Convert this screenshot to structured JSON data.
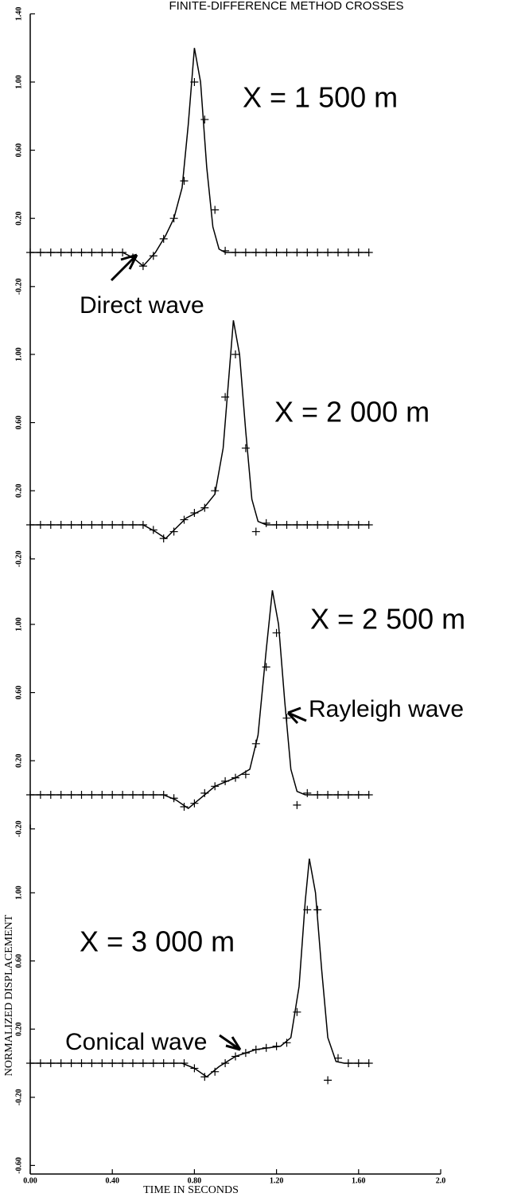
{
  "chart_data": [
    {
      "type": "line",
      "title": "FINITE-DIFFERENCE METHOD CROSSES",
      "label": "X = 1 500 m",
      "annotations": [
        "Direct wave"
      ],
      "xlim": [
        0,
        2
      ],
      "ylim": [
        -0.2,
        1.4
      ],
      "yticks": [
        {
          "value": -0.2,
          "label": "-0.20"
        },
        {
          "value": 0.2,
          "label": "0.20"
        },
        {
          "value": 0.6,
          "label": "0.60"
        },
        {
          "value": 1.0,
          "label": "1.00"
        },
        {
          "value": 1.4,
          "label": "1.40"
        }
      ],
      "series": [
        {
          "color": "#000000",
          "x": [
            0,
            0.45,
            0.5,
            0.55,
            0.61,
            0.66,
            0.7,
            0.74,
            0.77,
            0.8,
            0.83,
            0.86,
            0.89,
            0.92,
            0.95,
            1.65
          ],
          "values": [
            0,
            0,
            -0.03,
            -0.08,
            0,
            0.1,
            0.2,
            0.38,
            0.75,
            1.2,
            1.0,
            0.5,
            0.15,
            0.02,
            0,
            0
          ]
        },
        {
          "color": "#000000",
          "marker": "+",
          "x": [
            0,
            0.05,
            0.1,
            0.15,
            0.2,
            0.25,
            0.3,
            0.35,
            0.4,
            0.45,
            0.5,
            0.55,
            0.6,
            0.65,
            0.7,
            0.75,
            0.8,
            0.85,
            0.9,
            0.95,
            1.0,
            1.05,
            1.1,
            1.15,
            1.2,
            1.25,
            1.3,
            1.35,
            1.4,
            1.45,
            1.5,
            1.55,
            1.6,
            1.65
          ],
          "values": [
            0,
            0,
            0,
            0,
            0,
            0,
            0,
            0,
            0,
            0,
            -0.03,
            -0.08,
            -0.02,
            0.08,
            0.2,
            0.42,
            1.0,
            0.78,
            0.25,
            0.01,
            0,
            0,
            0,
            0,
            0,
            0,
            0,
            0,
            0,
            0,
            0,
            0,
            0,
            0
          ]
        }
      ]
    },
    {
      "type": "line",
      "label": "X = 2 000 m",
      "xlim": [
        0,
        2
      ],
      "ylim": [
        -0.2,
        1.4
      ],
      "yticks": [
        {
          "value": -0.2,
          "label": "-0.20"
        },
        {
          "value": 0.2,
          "label": "0.20"
        },
        {
          "value": 0.6,
          "label": "0.60"
        },
        {
          "value": 1.0,
          "label": "1.00"
        }
      ],
      "series": [
        {
          "color": "#000000",
          "x": [
            0,
            0.55,
            0.61,
            0.66,
            0.71,
            0.76,
            0.84,
            0.9,
            0.94,
            0.97,
            0.99,
            1.02,
            1.05,
            1.08,
            1.11,
            1.15,
            1.65
          ],
          "values": [
            0,
            0,
            -0.04,
            -0.08,
            -0.02,
            0.04,
            0.09,
            0.18,
            0.45,
            0.9,
            1.2,
            1.0,
            0.55,
            0.15,
            0.02,
            0,
            0
          ]
        },
        {
          "color": "#000000",
          "marker": "+",
          "x": [
            0,
            0.05,
            0.1,
            0.15,
            0.2,
            0.25,
            0.3,
            0.35,
            0.4,
            0.45,
            0.5,
            0.55,
            0.6,
            0.65,
            0.7,
            0.75,
            0.8,
            0.85,
            0.9,
            0.95,
            1.0,
            1.05,
            1.1,
            1.15,
            1.2,
            1.25,
            1.3,
            1.35,
            1.4,
            1.45,
            1.5,
            1.55,
            1.6,
            1.65
          ],
          "values": [
            0,
            0,
            0,
            0,
            0,
            0,
            0,
            0,
            0,
            0,
            0,
            0,
            -0.03,
            -0.08,
            -0.04,
            0.03,
            0.07,
            0.1,
            0.2,
            0.75,
            1.0,
            0.45,
            -0.04,
            0.01,
            0,
            0,
            0,
            0,
            0,
            0,
            0,
            0,
            0,
            0
          ]
        }
      ]
    },
    {
      "type": "line",
      "label": "X = 2 500 m",
      "annotations": [
        "Rayleigh wave"
      ],
      "xlim": [
        0,
        2
      ],
      "ylim": [
        -0.2,
        1.4
      ],
      "yticks": [
        {
          "value": -0.2,
          "label": "-0.20"
        },
        {
          "value": 0.2,
          "label": "0.20"
        },
        {
          "value": 0.6,
          "label": "0.60"
        },
        {
          "value": 1.0,
          "label": "1.00"
        }
      ],
      "series": [
        {
          "color": "#000000",
          "x": [
            0,
            0.65,
            0.71,
            0.77,
            0.83,
            0.9,
            1.0,
            1.07,
            1.11,
            1.15,
            1.18,
            1.21,
            1.24,
            1.27,
            1.3,
            1.34,
            1.65
          ],
          "values": [
            0,
            0,
            -0.03,
            -0.08,
            -0.02,
            0.05,
            0.1,
            0.15,
            0.35,
            0.85,
            1.2,
            1.0,
            0.55,
            0.15,
            0.02,
            0,
            0
          ]
        },
        {
          "color": "#000000",
          "marker": "+",
          "x": [
            0,
            0.05,
            0.1,
            0.15,
            0.2,
            0.25,
            0.3,
            0.35,
            0.4,
            0.45,
            0.5,
            0.55,
            0.6,
            0.65,
            0.7,
            0.75,
            0.8,
            0.85,
            0.9,
            0.95,
            1.0,
            1.05,
            1.1,
            1.15,
            1.2,
            1.25,
            1.3,
            1.35,
            1.4,
            1.45,
            1.5,
            1.55,
            1.6,
            1.65
          ],
          "values": [
            0,
            0,
            0,
            0,
            0,
            0,
            0,
            0,
            0,
            0,
            0,
            0,
            0,
            0,
            -0.02,
            -0.07,
            -0.05,
            0.01,
            0.05,
            0.08,
            0.1,
            0.12,
            0.3,
            0.75,
            0.95,
            0.45,
            -0.06,
            0.01,
            0,
            0,
            0,
            0,
            0,
            0
          ]
        }
      ]
    },
    {
      "type": "line",
      "label": "X = 3 000 m",
      "annotations": [
        "Conical wave"
      ],
      "y_label": "NORMALIZED DISPLACEMENT",
      "x_label": "TIME IN SECONDS",
      "xlim": [
        0,
        2
      ],
      "ylim": [
        -0.65,
        1.4
      ],
      "xticks": [
        {
          "value": 0,
          "label": "0.00"
        },
        {
          "value": 0.4,
          "label": "0.40"
        },
        {
          "value": 0.8,
          "label": "0.80"
        },
        {
          "value": 1.2,
          "label": "1.20"
        },
        {
          "value": 1.6,
          "label": "1.60"
        },
        {
          "value": 2.0,
          "label": "2.0"
        }
      ],
      "yticks": [
        {
          "value": -0.6,
          "label": "-0.60"
        },
        {
          "value": -0.2,
          "label": "-0.20"
        },
        {
          "value": 0.2,
          "label": "0.20"
        },
        {
          "value": 0.6,
          "label": "0.60"
        },
        {
          "value": 1.0,
          "label": "1.00"
        }
      ],
      "series": [
        {
          "color": "#000000",
          "x": [
            0,
            0.74,
            0.8,
            0.86,
            0.92,
            1.0,
            1.1,
            1.22,
            1.27,
            1.31,
            1.34,
            1.36,
            1.39,
            1.42,
            1.45,
            1.49,
            1.53,
            1.65
          ],
          "values": [
            0,
            0,
            -0.03,
            -0.08,
            -0.02,
            0.04,
            0.08,
            0.1,
            0.15,
            0.45,
            0.95,
            1.2,
            1.0,
            0.55,
            0.15,
            0.01,
            0,
            0
          ]
        },
        {
          "color": "#000000",
          "marker": "+",
          "x": [
            0,
            0.05,
            0.1,
            0.15,
            0.2,
            0.25,
            0.3,
            0.35,
            0.4,
            0.45,
            0.5,
            0.55,
            0.6,
            0.65,
            0.7,
            0.75,
            0.8,
            0.85,
            0.9,
            0.95,
            1.0,
            1.05,
            1.1,
            1.15,
            1.2,
            1.25,
            1.3,
            1.35,
            1.4,
            1.45,
            1.5,
            1.55,
            1.6,
            1.65
          ],
          "values": [
            0,
            0,
            0,
            0,
            0,
            0,
            0,
            0,
            0,
            0,
            0,
            0,
            0,
            0,
            0,
            0,
            -0.03,
            -0.08,
            -0.05,
            0,
            0.04,
            0.06,
            0.08,
            0.09,
            0.1,
            0.12,
            0.3,
            0.9,
            0.9,
            -0.1,
            0.03,
            0,
            0,
            0
          ]
        }
      ]
    }
  ]
}
